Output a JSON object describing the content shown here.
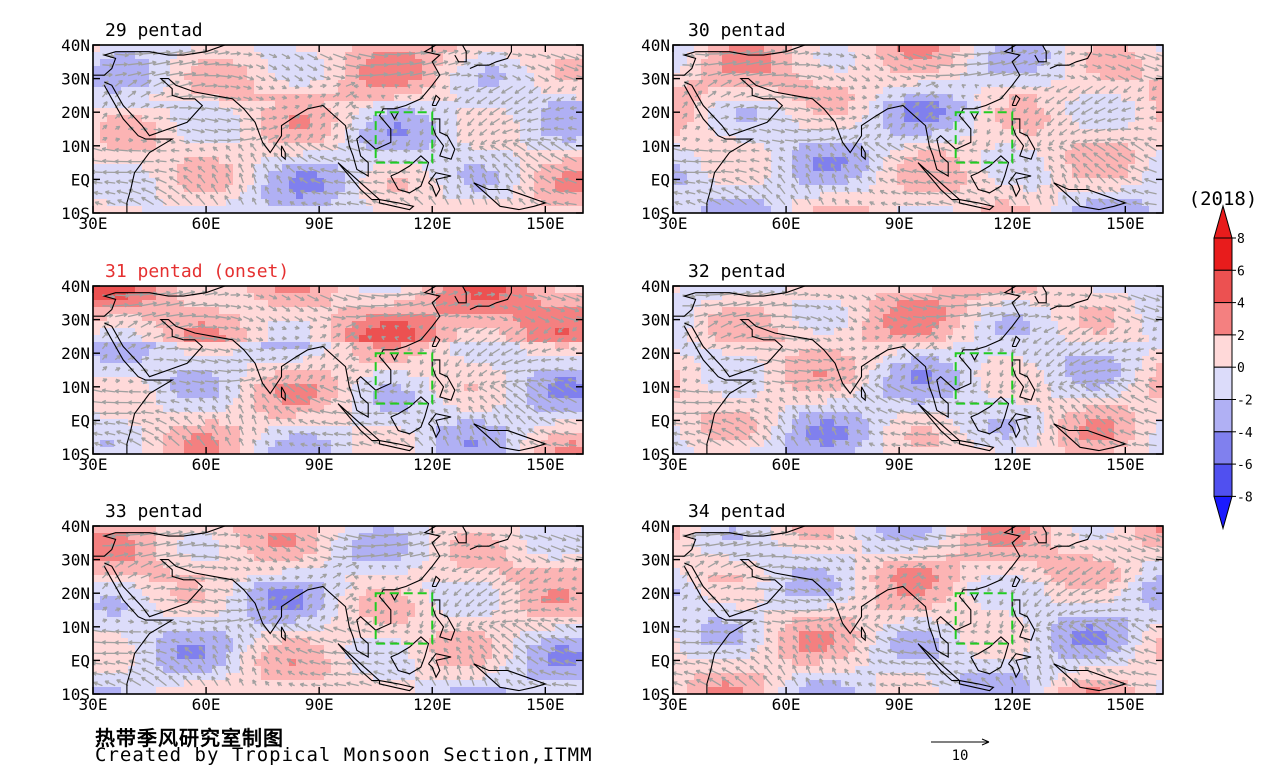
{
  "figure": {
    "year_label": "(2018)",
    "footer_cn": "热带季风研究室制图",
    "footer_en": "Created by Tropical Monsoon Section,ITMM",
    "vector_reference": "10",
    "colors": {
      "positive": [
        "#ffd9d9",
        "#fcb4b4",
        "#f48080",
        "#ec5151",
        "#e81c1c"
      ],
      "negative": [
        "#dcdcfa",
        "#b0b0f4",
        "#8080ee",
        "#5050f0",
        "#1a1aff"
      ],
      "vectors": "#a0a0a0",
      "box": "#22cc22",
      "onset_title": "#e53030"
    }
  },
  "map": {
    "lon_ticks": [
      "30E",
      "60E",
      "90E",
      "120E",
      "150E"
    ],
    "lat_ticks": [
      "40N",
      "30N",
      "20N",
      "10N",
      "EQ",
      "10S"
    ],
    "lon_range": [
      30,
      160
    ],
    "lat_range": [
      -10,
      40
    ],
    "box_region": {
      "lon": [
        105,
        120
      ],
      "lat": [
        5,
        20
      ]
    }
  },
  "panels": [
    {
      "title": "29 pentad",
      "onset": false
    },
    {
      "title": "30 pentad",
      "onset": false
    },
    {
      "title": "31 pentad (onset)",
      "onset": true
    },
    {
      "title": "32 pentad",
      "onset": false
    },
    {
      "title": "33 pentad",
      "onset": false
    },
    {
      "title": "34 pentad",
      "onset": false
    }
  ],
  "colorbar": {
    "labels": [
      "8",
      "6",
      "4",
      "2",
      "0",
      "-2",
      "-4",
      "-6",
      "-8"
    ]
  }
}
